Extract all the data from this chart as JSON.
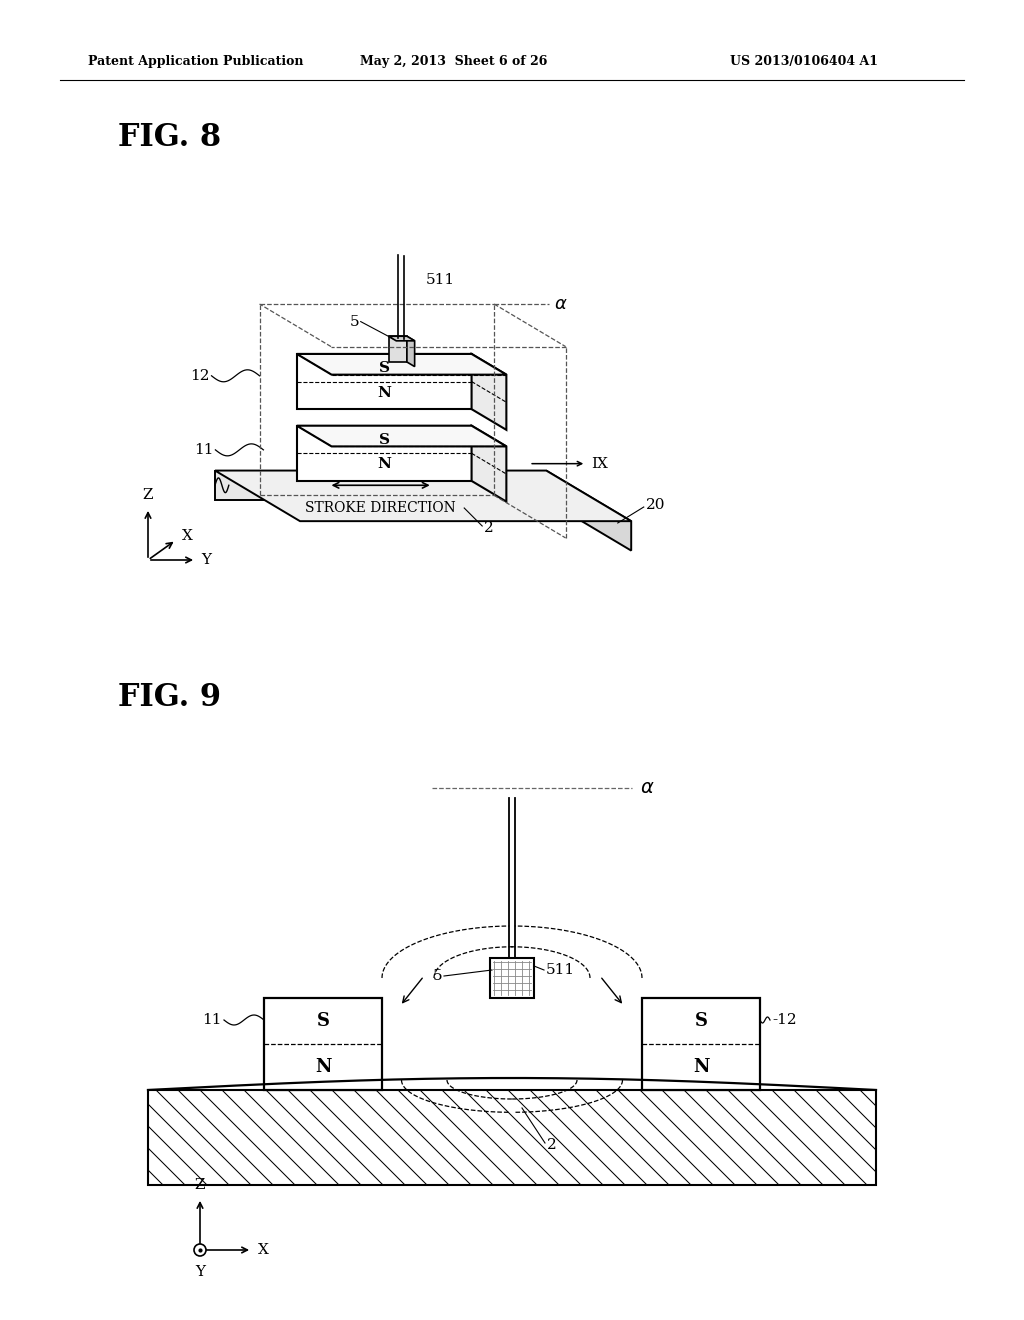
{
  "header_left": "Patent Application Publication",
  "header_mid": "May 2, 2013  Sheet 6 of 26",
  "header_right": "US 2013/0106404 A1",
  "fig8_label": "FIG. 8",
  "fig9_label": "FIG. 9",
  "bg_color": "#ffffff",
  "line_color": "#000000"
}
